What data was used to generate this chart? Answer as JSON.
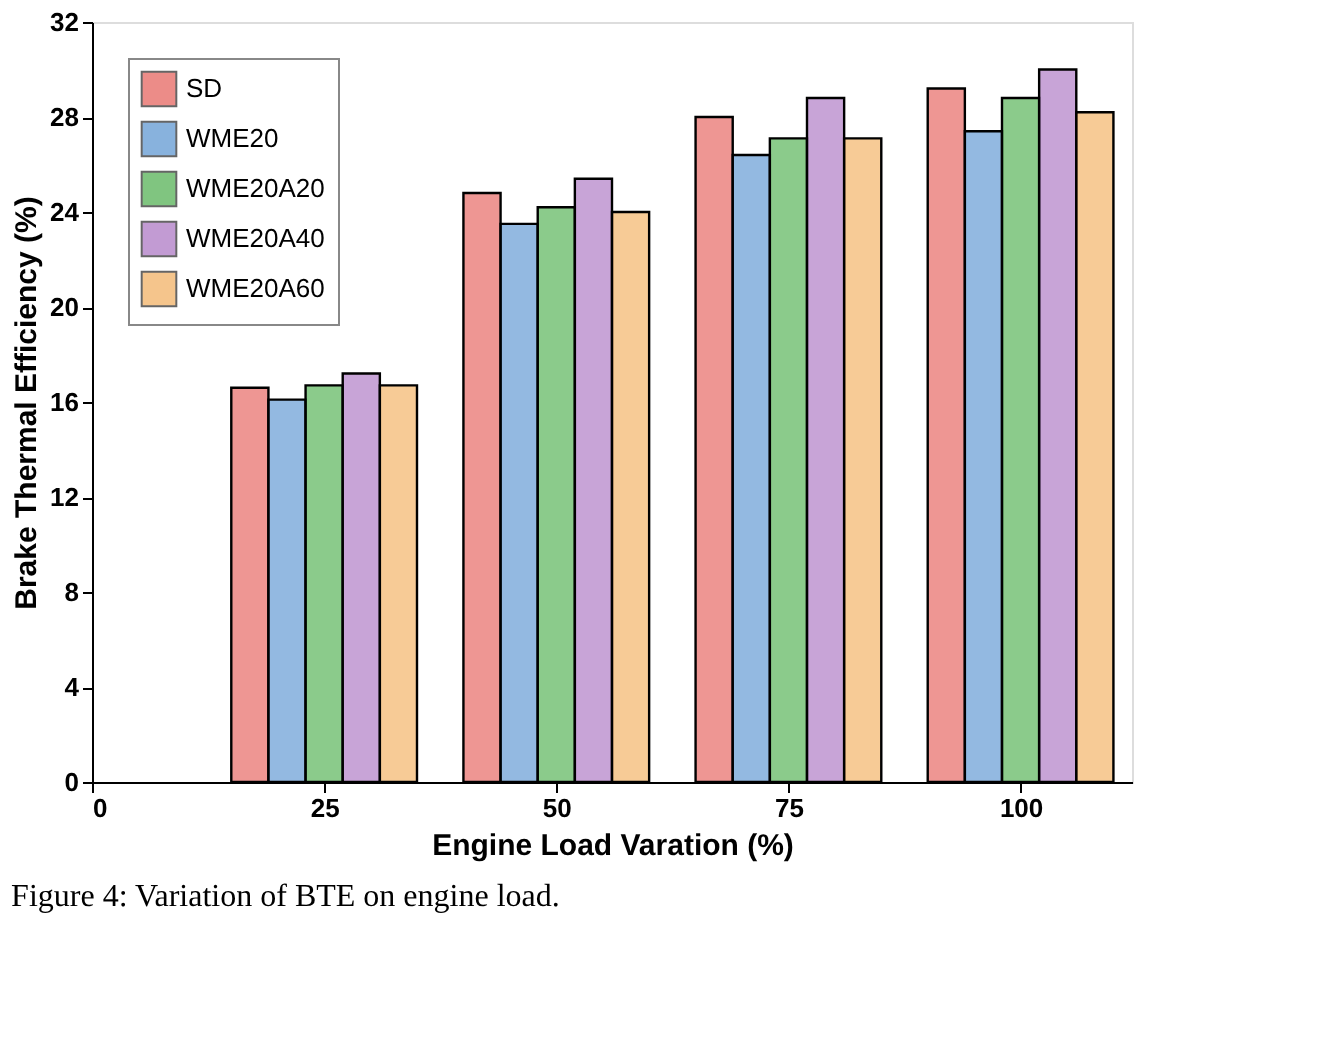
{
  "chart_data": {
    "type": "bar",
    "xlabel": "Engine Load Varation (%)",
    "ylabel": "Brake Thermal Efficiency (%)",
    "x": [
      25,
      50,
      75,
      100
    ],
    "xlim": [
      0,
      112
    ],
    "xticks": [
      0,
      25,
      50,
      75,
      100
    ],
    "ylim": [
      0,
      32
    ],
    "yticks": [
      0,
      4,
      8,
      12,
      16,
      20,
      24,
      28,
      32
    ],
    "grid": false,
    "legend": "top left",
    "series": [
      {
        "name": "SD",
        "color": "#e0403a",
        "values": [
          16.6,
          24.8,
          28.0,
          29.2
        ]
      },
      {
        "name": "WME20",
        "color": "#3a80c8",
        "values": [
          16.1,
          23.5,
          26.4,
          27.4
        ]
      },
      {
        "name": "WME20A20",
        "color": "#2ca02c",
        "values": [
          16.7,
          24.2,
          27.1,
          28.8
        ]
      },
      {
        "name": "WME20A40",
        "color": "#9b59b6",
        "values": [
          17.2,
          25.4,
          28.8,
          30.0
        ]
      },
      {
        "name": "WME20A60",
        "color": "#f0a040",
        "values": [
          16.7,
          24.0,
          27.1,
          28.2
        ]
      }
    ],
    "annotations": [
      "Figure 4: Variation of BTE on engine load."
    ]
  }
}
